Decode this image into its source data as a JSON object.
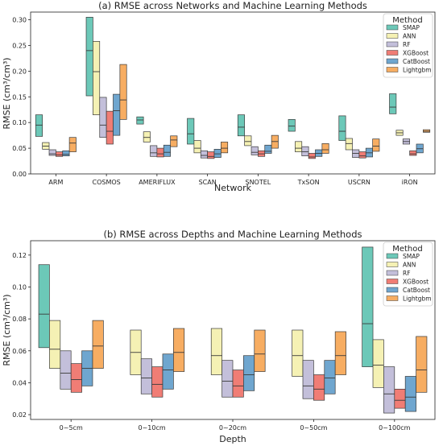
{
  "colors": {
    "SMAP": "#6cc8b8",
    "ANN": "#f5f1b4",
    "RF": "#c3bfda",
    "XGBoost": "#f07d75",
    "CatBoost": "#6fa6cf",
    "Lightgbm": "#f7ad62"
  },
  "chart_data": [
    {
      "type": "box",
      "title": "(a) RMSE across Networks and Machine Learning Methods",
      "xlabel": "Network",
      "ylabel": "RMSE (cm³/cm³)",
      "ylim": [
        0,
        0.315
      ],
      "yticks": [
        "0.00",
        "0.05",
        "0.10",
        "0.15",
        "0.20",
        "0.25",
        "0.30"
      ],
      "legend_title": "Method",
      "legend_position": "top-right",
      "grid": false,
      "categories": [
        "ARM",
        "COSMOS",
        "AMERIFLUX",
        "SCAN",
        "SNOTEL",
        "TxSON",
        "USCRN",
        "iRON"
      ],
      "series": [
        {
          "name": "SMAP",
          "boxes": [
            [
              0.073,
              0.095,
              0.115
            ],
            [
              0.152,
              0.24,
              0.305
            ],
            [
              0.097,
              0.105,
              0.111
            ],
            [
              0.058,
              0.078,
              0.108
            ],
            [
              0.074,
              0.091,
              0.115
            ],
            [
              0.083,
              0.093,
              0.106
            ],
            [
              0.065,
              0.083,
              0.113
            ],
            [
              0.117,
              0.13,
              0.156
            ]
          ]
        },
        {
          "name": "ANN",
          "boxes": [
            [
              0.048,
              0.054,
              0.061
            ],
            [
              0.115,
              0.199,
              0.258
            ],
            [
              0.062,
              0.071,
              0.082
            ],
            [
              0.041,
              0.05,
              0.065
            ],
            [
              0.055,
              0.063,
              0.074
            ],
            [
              0.043,
              0.05,
              0.063
            ],
            [
              0.047,
              0.059,
              0.069
            ],
            [
              0.075,
              0.08,
              0.085
            ]
          ]
        },
        {
          "name": "RF",
          "boxes": [
            [
              0.036,
              0.039,
              0.047
            ],
            [
              0.071,
              0.095,
              0.149
            ],
            [
              0.034,
              0.041,
              0.055
            ],
            [
              0.031,
              0.036,
              0.045
            ],
            [
              0.037,
              0.042,
              0.053
            ],
            [
              0.035,
              0.043,
              0.053
            ],
            [
              0.032,
              0.04,
              0.047
            ],
            [
              0.058,
              0.063,
              0.068
            ]
          ]
        },
        {
          "name": "XGBoost",
          "boxes": [
            [
              0.034,
              0.037,
              0.043
            ],
            [
              0.058,
              0.083,
              0.122
            ],
            [
              0.033,
              0.039,
              0.05
            ],
            [
              0.03,
              0.034,
              0.043
            ],
            [
              0.034,
              0.039,
              0.045
            ],
            [
              0.03,
              0.033,
              0.04
            ],
            [
              0.031,
              0.035,
              0.043
            ],
            [
              0.036,
              0.039,
              0.045
            ]
          ]
        },
        {
          "name": "CatBoost",
          "boxes": [
            [
              0.035,
              0.038,
              0.045
            ],
            [
              0.075,
              0.123,
              0.155
            ],
            [
              0.034,
              0.042,
              0.056
            ],
            [
              0.032,
              0.039,
              0.048
            ],
            [
              0.04,
              0.044,
              0.056
            ],
            [
              0.034,
              0.04,
              0.047
            ],
            [
              0.033,
              0.041,
              0.05
            ],
            [
              0.041,
              0.049,
              0.058
            ]
          ]
        },
        {
          "name": "Lightgbm",
          "boxes": [
            [
              0.043,
              0.06,
              0.071
            ],
            [
              0.106,
              0.144,
              0.213
            ],
            [
              0.053,
              0.066,
              0.074
            ],
            [
              0.041,
              0.05,
              0.062
            ],
            [
              0.05,
              0.063,
              0.075
            ],
            [
              0.04,
              0.047,
              0.059
            ],
            [
              0.044,
              0.054,
              0.068
            ],
            [
              0.081,
              0.083,
              0.086
            ]
          ]
        }
      ]
    },
    {
      "type": "box",
      "title": "(b) RMSE across Depths and Machine Learning Methods",
      "xlabel": "Depth",
      "ylabel": "RMSE (cm³/cm³)",
      "ylim": [
        0.017,
        0.129
      ],
      "yticks": [
        "0.02",
        "0.04",
        "0.06",
        "0.08",
        "0.10",
        "0.12"
      ],
      "legend_title": "Method",
      "legend_position": "top-right",
      "grid": false,
      "categories": [
        "0~5cm",
        "0~10cm",
        "0~20cm",
        "0~50cm",
        "0~100cm"
      ],
      "series": [
        {
          "name": "SMAP",
          "boxes": [
            [
              0.062,
              0.083,
              0.114
            ],
            null,
            null,
            null,
            [
              0.05,
              0.077,
              0.125
            ]
          ]
        },
        {
          "name": "ANN",
          "boxes": [
            [
              0.049,
              0.061,
              0.079
            ],
            [
              0.045,
              0.059,
              0.073
            ],
            [
              0.045,
              0.057,
              0.074
            ],
            [
              0.044,
              0.057,
              0.073
            ],
            [
              0.037,
              0.051,
              0.067
            ]
          ]
        },
        {
          "name": "RF",
          "boxes": [
            [
              0.036,
              0.046,
              0.06
            ],
            [
              0.033,
              0.043,
              0.055
            ],
            [
              0.031,
              0.041,
              0.054
            ],
            [
              0.03,
              0.038,
              0.054
            ],
            [
              0.021,
              0.033,
              0.05
            ]
          ]
        },
        {
          "name": "XGBoost",
          "boxes": [
            [
              0.034,
              0.042,
              0.052
            ],
            [
              0.031,
              0.039,
              0.05
            ],
            [
              0.031,
              0.038,
              0.048
            ],
            [
              0.029,
              0.036,
              0.045
            ],
            [
              0.024,
              0.029,
              0.036
            ]
          ]
        },
        {
          "name": "CatBoost",
          "boxes": [
            [
              0.038,
              0.049,
              0.06
            ],
            [
              0.036,
              0.048,
              0.058
            ],
            [
              0.035,
              0.045,
              0.057
            ],
            [
              0.033,
              0.043,
              0.054
            ],
            [
              0.022,
              0.031,
              0.044
            ]
          ]
        },
        {
          "name": "Lightgbm",
          "boxes": [
            [
              0.049,
              0.063,
              0.079
            ],
            [
              0.047,
              0.059,
              0.074
            ],
            [
              0.047,
              0.058,
              0.073
            ],
            [
              0.045,
              0.057,
              0.072
            ],
            [
              0.034,
              0.048,
              0.069
            ]
          ]
        }
      ]
    }
  ]
}
